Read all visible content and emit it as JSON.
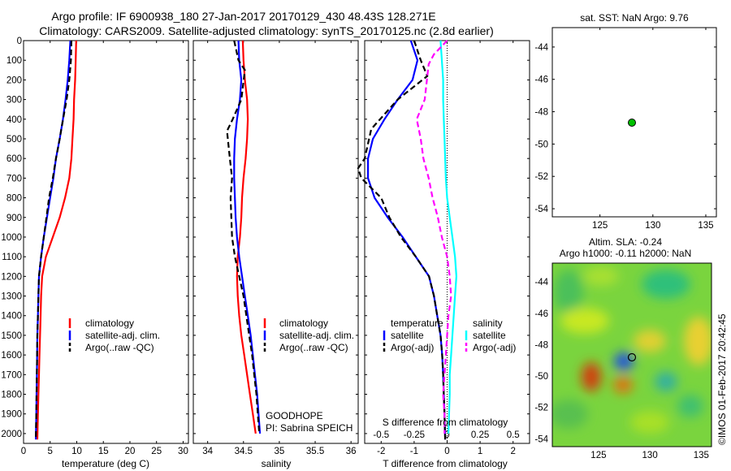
{
  "header": {
    "line1": "Argo profile: IF 6900938_180 27-Jan-2017 20170129_430 48.43S 128.271E",
    "line2": "Climatology: CARS2009. Satellite-adjusted climatology: synTS_20170125.nc (2.8d earlier)"
  },
  "colors": {
    "climatology": "#ff0000",
    "satellite": "#0000ff",
    "argo": "#000000",
    "sal_satellite": "#00ffff",
    "sal_argo": "#ff00ff"
  },
  "depth_ticks": [
    "0",
    "100",
    "200",
    "300",
    "400",
    "500",
    "600",
    "700",
    "800",
    "900",
    "1000",
    "1100",
    "1200",
    "1300",
    "1400",
    "1500",
    "1600",
    "1700",
    "1800",
    "1900",
    "2000"
  ],
  "panel_temp": {
    "xlabel": "temperature (deg C)",
    "xticks": [
      "0",
      "5",
      "10",
      "15",
      "20",
      "25",
      "30"
    ],
    "legend": [
      "climatology",
      "satellite-adj. clim.",
      "Argo(..raw -QC)"
    ]
  },
  "panel_sal": {
    "xlabel": "salinity",
    "xticks": [
      "34",
      "34.5",
      "35",
      "35.5",
      "36"
    ],
    "legend": [
      "climatology",
      "satellite-adj. clim.",
      "Argo(..raw -QC)"
    ],
    "project": "GOODHOPE",
    "pi": "PI: Sabrina SPEICH"
  },
  "panel_diff": {
    "xlabel": "T difference from climatology",
    "top_label": "S difference from climatology",
    "t_ticks": [
      "-2",
      "-1",
      "0",
      "1",
      "2"
    ],
    "s_ticks": [
      "-0.5",
      "-0.25",
      "0",
      "0.25",
      "0.5"
    ],
    "legend_t_title": "temperature",
    "legend_s_title": "salinity",
    "legend_sat": "satellite",
    "legend_argo": "Argo(-adj)"
  },
  "map_sst": {
    "title": "sat. SST: NaN Argo: 9.76",
    "yticks": [
      "-44",
      "-46",
      "-48",
      "-50",
      "-52",
      "-54"
    ],
    "xticks": [
      "125",
      "130",
      "135"
    ]
  },
  "map_sla": {
    "title1": "Altim. SLA: -0.24",
    "title2": "Argo h1000: -0.11 h2000: NaN",
    "yticks": [
      "-44",
      "-46",
      "-48",
      "-50",
      "-52",
      "-54"
    ],
    "xticks": [
      "125",
      "130",
      "135"
    ]
  },
  "footer": "©IMOS 01-Feb-2017 20:42:45",
  "chart_data": [
    {
      "type": "line",
      "title": "",
      "xlabel": "temperature (deg C)",
      "ylabel": "depth",
      "xlim": [
        0,
        31
      ],
      "ylim": [
        2050,
        0
      ],
      "y_reversed": true,
      "series": [
        {
          "name": "climatology",
          "color": "#ff0000",
          "x": [
            9.9,
            9.8,
            9.7,
            9.5,
            9.4,
            9.2,
            9.0,
            8.6,
            7.8,
            6.8,
            5.5,
            4.2,
            3.5,
            3.3,
            3.2,
            3.1,
            3.0,
            2.9,
            2.8,
            2.7,
            2.6
          ],
          "y": [
            0,
            100,
            200,
            300,
            400,
            500,
            600,
            700,
            800,
            900,
            1000,
            1100,
            1200,
            1300,
            1400,
            1500,
            1600,
            1700,
            1800,
            1900,
            2030
          ]
        },
        {
          "name": "satellite-adj. clim.",
          "color": "#0000ff",
          "x": [
            8.8,
            8.6,
            8.3,
            7.9,
            7.4,
            6.8,
            6.1,
            5.6,
            5.0,
            4.4,
            3.8,
            3.3,
            2.9,
            2.8,
            2.7,
            2.6,
            2.55,
            2.5,
            2.45,
            2.4,
            2.3
          ],
          "y": [
            0,
            100,
            200,
            300,
            400,
            500,
            600,
            700,
            800,
            900,
            1000,
            1100,
            1200,
            1300,
            1400,
            1500,
            1600,
            1700,
            1800,
            1900,
            2030
          ]
        },
        {
          "name": "Argo(..raw -QC)",
          "color": "#000000",
          "x": [
            9.0,
            8.9,
            8.6,
            8.1,
            7.1,
            6.8,
            6.1,
            5.5,
            4.8,
            4.3,
            3.8,
            3.3,
            2.9,
            2.8,
            2.7,
            2.6,
            2.55,
            2.5,
            2.45,
            2.4,
            2.3
          ],
          "y": [
            0,
            100,
            200,
            300,
            450,
            500,
            600,
            700,
            800,
            900,
            1000,
            1100,
            1200,
            1300,
            1400,
            1500,
            1600,
            1700,
            1800,
            1900,
            2030
          ]
        }
      ]
    },
    {
      "type": "line",
      "title": "",
      "xlabel": "salinity",
      "ylabel": "depth",
      "xlim": [
        33.8,
        36.1
      ],
      "ylim": [
        2050,
        0
      ],
      "y_reversed": true,
      "series": [
        {
          "name": "climatology",
          "color": "#ff0000",
          "x": [
            34.49,
            34.5,
            34.52,
            34.55,
            34.56,
            34.55,
            34.53,
            34.5,
            34.48,
            34.47,
            34.45,
            34.42,
            34.41,
            34.42,
            34.44,
            34.47,
            34.51,
            34.55,
            34.59,
            34.63,
            34.67
          ],
          "y": [
            0,
            100,
            200,
            300,
            400,
            500,
            600,
            700,
            800,
            900,
            1000,
            1100,
            1200,
            1300,
            1400,
            1500,
            1600,
            1700,
            1800,
            1900,
            2000
          ]
        },
        {
          "name": "satellite-adj. clim.",
          "color": "#0000ff",
          "x": [
            34.43,
            34.44,
            34.47,
            34.45,
            34.41,
            34.38,
            34.37,
            34.37,
            34.38,
            34.39,
            34.41,
            34.44,
            34.48,
            34.52,
            34.56,
            34.6,
            34.63,
            34.66,
            34.69,
            34.71,
            34.73
          ],
          "y": [
            0,
            100,
            200,
            300,
            400,
            500,
            600,
            700,
            800,
            900,
            1000,
            1100,
            1200,
            1300,
            1400,
            1500,
            1600,
            1700,
            1800,
            1900,
            2000
          ]
        },
        {
          "name": "Argo(..raw -QC)",
          "color": "#000000",
          "x": [
            34.37,
            34.43,
            34.52,
            34.47,
            34.35,
            34.27,
            34.31,
            34.34,
            34.32,
            34.33,
            34.34,
            34.38,
            34.44,
            34.5,
            34.54,
            34.58,
            34.62,
            34.65,
            34.68,
            34.7,
            34.72
          ],
          "y": [
            0,
            100,
            150,
            300,
            400,
            460,
            600,
            700,
            800,
            900,
            1000,
            1100,
            1200,
            1300,
            1400,
            1500,
            1600,
            1700,
            1800,
            1900,
            2000
          ]
        }
      ]
    },
    {
      "type": "line",
      "title": "",
      "xlabel": "T difference from climatology",
      "x2label": "S difference from climatology",
      "ylabel": "depth",
      "xlim": [
        -2.5,
        2.5
      ],
      "ylim": [
        2050,
        0
      ],
      "x2lim": [
        -0.625,
        0.625
      ],
      "y_reversed": true,
      "series": [
        {
          "name": "temperature satellite",
          "axis": "T",
          "color": "#0000ff",
          "x": [
            -1.1,
            -0.9,
            -1.05,
            -1.5,
            -1.9,
            -2.25,
            -2.4,
            -2.4,
            -2.2,
            -1.8,
            -1.35,
            -0.95,
            -0.55,
            -0.4,
            -0.3,
            -0.2,
            -0.15,
            -0.12,
            -0.1,
            -0.08,
            -0.06
          ],
          "y": [
            0,
            100,
            200,
            300,
            400,
            500,
            600,
            700,
            800,
            900,
            1000,
            1100,
            1200,
            1300,
            1400,
            1500,
            1600,
            1700,
            1800,
            1900,
            2030
          ]
        },
        {
          "name": "temperature Argo(-adj)",
          "axis": "T",
          "color": "#000000",
          "x": [
            -1.0,
            -0.8,
            -0.6,
            -1.5,
            -2.3,
            -2.5,
            -2.7,
            -2.6,
            -2.0,
            -1.75,
            -1.4,
            -0.95,
            -0.55,
            -0.4,
            -0.3,
            -0.2,
            -0.15,
            -0.12,
            -0.1,
            -0.08,
            -0.06
          ],
          "y": [
            0,
            100,
            180,
            300,
            450,
            600,
            650,
            700,
            800,
            900,
            1000,
            1100,
            1200,
            1300,
            1400,
            1500,
            1600,
            1700,
            1800,
            1900,
            2030
          ]
        },
        {
          "name": "salinity satellite",
          "axis": "S",
          "color": "#00ffff",
          "x": [
            -0.05,
            -0.04,
            -0.03,
            -0.03,
            -0.025,
            -0.02,
            -0.015,
            -0.01,
            0.0,
            0.02,
            0.04,
            0.06,
            0.07,
            0.06,
            0.05,
            0.04,
            0.03,
            0.02,
            0.02,
            0.015,
            0.01
          ],
          "y": [
            0,
            100,
            200,
            300,
            400,
            500,
            600,
            700,
            800,
            900,
            1000,
            1100,
            1200,
            1300,
            1400,
            1500,
            1600,
            1700,
            1800,
            1900,
            2000
          ]
        },
        {
          "name": "salinity Argo(-adj)",
          "axis": "S",
          "color": "#ff00ff",
          "x": [
            0.0,
            -0.1,
            -0.14,
            -0.17,
            -0.23,
            -0.2,
            -0.18,
            -0.14,
            -0.11,
            -0.07,
            -0.04,
            0.0,
            0.02,
            0.03,
            0.01,
            0.0,
            -0.01,
            -0.02,
            -0.03,
            -0.02,
            -0.02
          ],
          "y": [
            0,
            70,
            120,
            300,
            400,
            500,
            600,
            700,
            800,
            900,
            1000,
            1100,
            1200,
            1300,
            1400,
            1500,
            1600,
            1700,
            1800,
            1900,
            2000
          ]
        }
      ]
    },
    {
      "type": "scatter",
      "title": "sat. SST: NaN Argo: 9.76",
      "xlim": [
        120.5,
        136.0
      ],
      "ylim": [
        -54.5,
        -42.8
      ],
      "series": [
        {
          "name": "",
          "x": [
            128.27
          ],
          "y": [
            -48.43
          ]
        }
      ]
    },
    {
      "type": "heatmap",
      "title": "Altim. SLA: -0.24 / Argo h1000: -0.11 h2000: NaN",
      "xlim": [
        120.5,
        136.0
      ],
      "ylim": [
        -54.5,
        -42.8
      ],
      "series": [
        {
          "name": "",
          "x": [
            128.27
          ],
          "y": [
            -48.43
          ]
        }
      ]
    }
  ]
}
